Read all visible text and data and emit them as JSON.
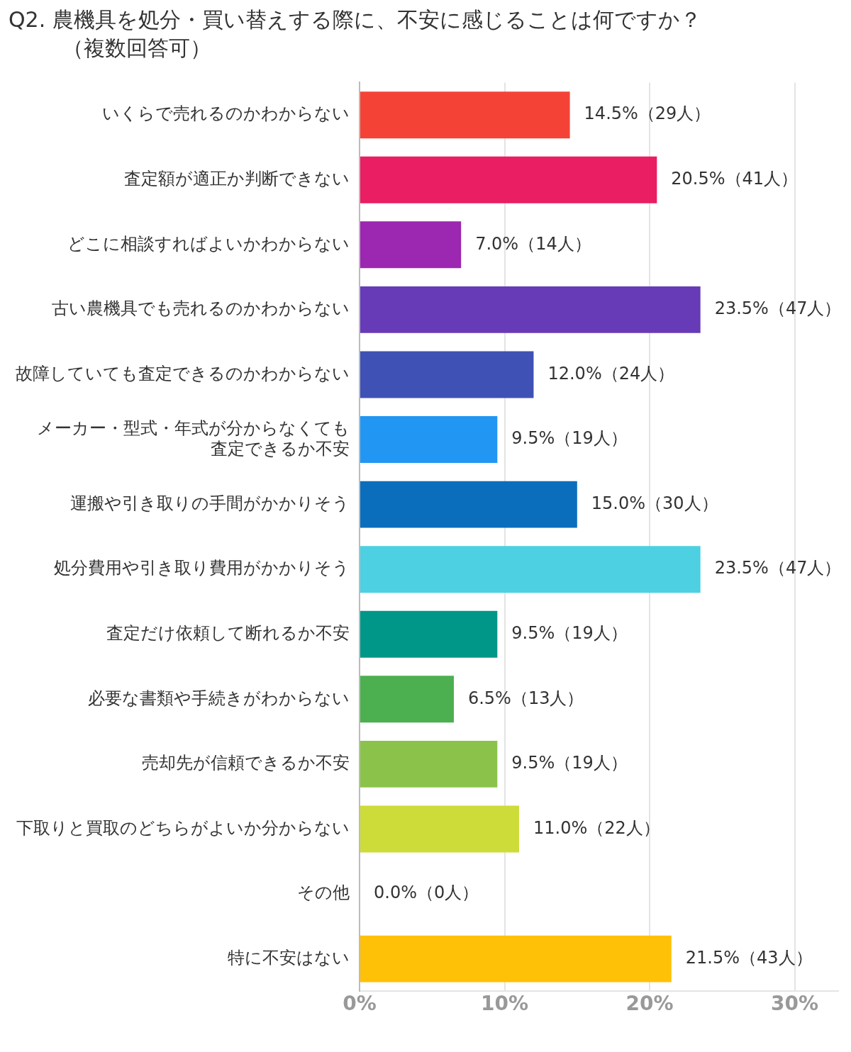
{
  "chart_data": {
    "type": "bar",
    "orientation": "horizontal",
    "title": "Q2. 農機具を処分・買い替えする際に、不安に感じることは何ですか？",
    "subtitle": "（複数回答可）",
    "categories": [
      "いくらで売れるのかわからない",
      "査定額が適正か判断できない",
      "どこに相談すればよいかわからない",
      "古い農機具でも売れるのかわからない",
      "故障していても査定できるのかわからない",
      "メーカー・型式・年式が分からなくても査定できるか不安",
      "運搬や引き取りの手間がかかりそう",
      "処分費用や引き取り費用がかかりそう",
      "査定だけ依頼して断れるか不安",
      "必要な書類や手続きがわからない",
      "売却先が信頼できるか不安",
      "下取りと買取のどちらがよいか分からない",
      "その他",
      "特に不安はない"
    ],
    "values": [
      14.5,
      20.5,
      7.0,
      23.5,
      12.0,
      9.5,
      15.0,
      23.5,
      9.5,
      6.5,
      9.5,
      11.0,
      0.0,
      21.5
    ],
    "colors": [
      "#f44336",
      "#e91e63",
      "#9c27b0",
      "#673ab7",
      "#3f51b5",
      "#2196f3",
      "#0a6ebd",
      "#4dd0e1",
      "#009688",
      "#4caf50",
      "#8bc34a",
      "#cddc39",
      "#ff9800",
      "#ffc107"
    ],
    "value_labels": [
      "14.5%（29人）",
      "20.5%（41人）",
      "7.0%（14人）",
      "23.5%（47人）",
      "12.0%（24人）",
      "9.5%（19人）",
      "15.0%（30人）",
      "23.5%（47人）",
      "9.5%（19人）",
      "6.5%（13人）",
      "9.5%（19人）",
      "11.0%（22人）",
      "0.0%（0人）",
      "21.5%（43人）"
    ],
    "xlim": [
      0,
      33
    ],
    "xticks": [
      {
        "value": 0,
        "label": "0%"
      },
      {
        "value": 10,
        "label": "10%"
      },
      {
        "value": 20,
        "label": "20%"
      },
      {
        "value": 30,
        "label": "30%"
      }
    ],
    "grid": "x",
    "legend": false
  }
}
